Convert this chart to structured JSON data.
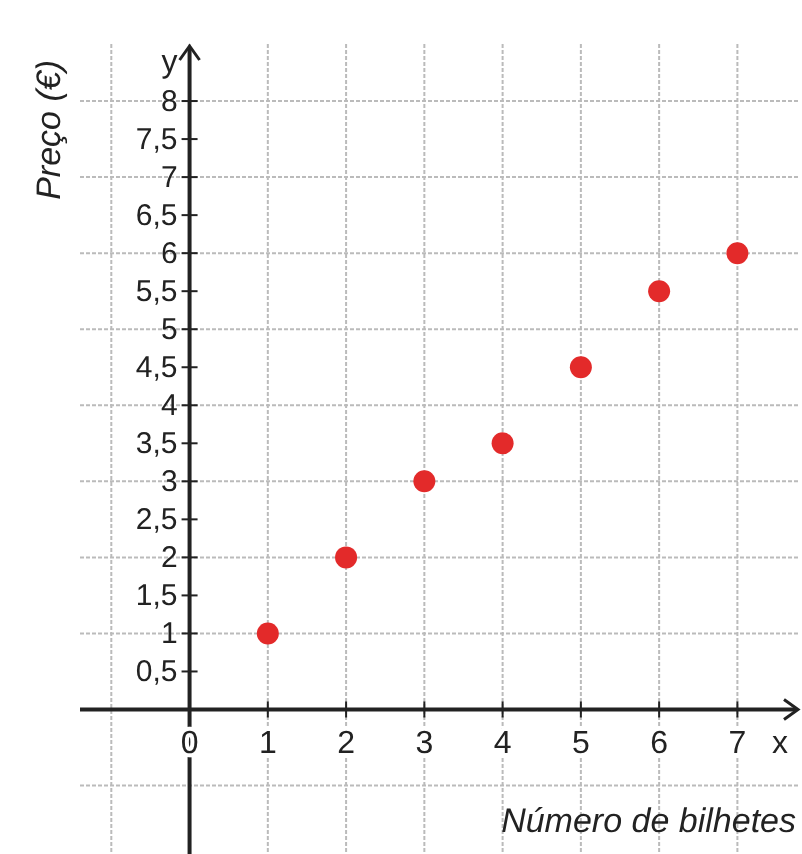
{
  "chart_data": {
    "type": "scatter",
    "xlabel": "Número de bilhetes",
    "ylabel": "Preço (€)",
    "x": [
      1,
      2,
      3,
      4,
      5,
      6,
      7
    ],
    "series": [
      {
        "color": "#e32a2a",
        "values": [
          1,
          2,
          3,
          3.5,
          4.5,
          5.5,
          6
        ]
      }
    ],
    "xlim": [
      -1.4,
      7.8
    ],
    "ylim": [
      -1.9,
      8.75
    ],
    "xticks": [
      0,
      1,
      2,
      3,
      4,
      5,
      6,
      7
    ],
    "yticks": [
      {
        "value": 0.5,
        "label": "0,5"
      },
      1,
      {
        "value": 1.5,
        "label": "1,5"
      },
      2,
      {
        "value": 2.5,
        "label": "2,5"
      },
      3,
      {
        "value": 3.5,
        "label": "3,5"
      },
      4,
      {
        "value": 4.5,
        "label": "4,5"
      },
      5,
      {
        "value": 5.5,
        "label": "5,5"
      },
      6,
      {
        "value": 6.5,
        "label": "6,5"
      },
      7,
      {
        "value": 7.5,
        "label": "7,5"
      },
      8
    ],
    "grid": true,
    "marker": "circle",
    "annotations": [
      "y",
      "x"
    ]
  }
}
